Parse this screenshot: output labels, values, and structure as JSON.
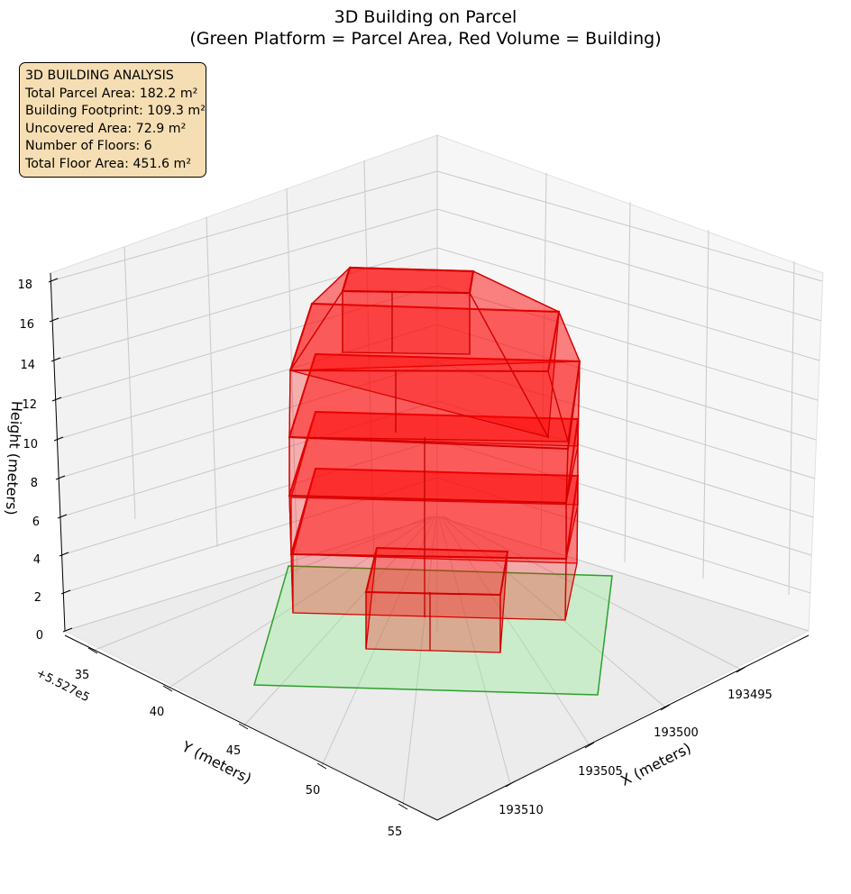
{
  "title_line1": "3D Building on Parcel",
  "title_line2": "(Green Platform = Parcel Area, Red Volume = Building)",
  "info_box": {
    "heading": "3D BUILDING ANALYSIS",
    "total_parcel_area": "Total Parcel Area: 182.2 m²",
    "building_footprint": "Building Footprint: 109.3 m²",
    "uncovered_area": "Uncovered Area: 72.9 m²",
    "num_floors": "Number of Floors: 6",
    "total_floor_area": "Total Floor Area: 451.6 m²"
  },
  "chart_data": {
    "type": "3d-bar",
    "xlabel": "X (meters)",
    "ylabel": "Y (meters)",
    "zlabel": "Height (meters)",
    "y_offset_label": "+5.527e5",
    "x_ticks": [
      "193495",
      "193500",
      "193505",
      "193510"
    ],
    "y_ticks": [
      "35",
      "40",
      "45",
      "50",
      "55"
    ],
    "z_ticks": [
      "0",
      "2",
      "4",
      "6",
      "8",
      "10",
      "12",
      "14",
      "16",
      "18"
    ],
    "zlim": [
      0,
      18
    ],
    "parcel_color": "#90ee90",
    "building_color": "#ff0000",
    "floors": [
      {
        "floor": 1,
        "z_bottom": 0,
        "z_top": 3
      },
      {
        "floor": 2,
        "z_bottom": 3,
        "z_top": 6
      },
      {
        "floor": 3,
        "z_bottom": 6,
        "z_top": 9
      },
      {
        "floor": 4,
        "z_bottom": 9,
        "z_top": 12
      },
      {
        "floor": 5,
        "z_bottom": 12,
        "z_top": 15
      },
      {
        "floor": 6,
        "z_bottom": 15,
        "z_top": 17
      }
    ]
  }
}
